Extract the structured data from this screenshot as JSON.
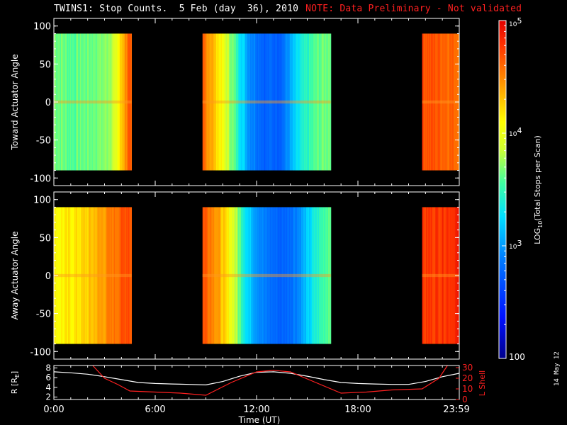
{
  "header": {
    "title": "TWINS1: Stop Counts.  5 Feb (day  36), 2010",
    "note": "NOTE: Data Preliminary - Not validated"
  },
  "side_label": "14 May 12",
  "colors": {
    "background": "#000000",
    "axes": "#ffffff",
    "note": "#ff2020",
    "lshell": "#ff2020",
    "radius": "#ffffff"
  },
  "chart_data": [
    {
      "type": "heatmap",
      "panel": "toward",
      "ylabel": "Toward Actuator Angle",
      "ylim": [
        -110,
        110
      ],
      "yticks": [
        -100,
        -50,
        0,
        50,
        100
      ],
      "xlim_hours": [
        0,
        24
      ],
      "scan_range_deg": [
        -90,
        90
      ],
      "data_blocks_hours": [
        [
          0.0,
          4.6
        ],
        [
          8.8,
          16.4
        ],
        [
          21.8,
          24.0
        ]
      ],
      "log10_profile": [
        {
          "t": 0.0,
          "v": 3.7
        },
        {
          "t": 1.0,
          "v": 3.6
        },
        {
          "t": 2.0,
          "v": 3.65
        },
        {
          "t": 3.0,
          "v": 3.7
        },
        {
          "t": 3.6,
          "v": 3.9
        },
        {
          "t": 4.0,
          "v": 4.3
        },
        {
          "t": 4.4,
          "v": 4.65
        },
        {
          "t": 4.6,
          "v": 4.5
        },
        {
          "t": 8.8,
          "v": 4.6
        },
        {
          "t": 9.5,
          "v": 4.3
        },
        {
          "t": 10.5,
          "v": 3.7
        },
        {
          "t": 11.5,
          "v": 3.0
        },
        {
          "t": 12.5,
          "v": 2.75
        },
        {
          "t": 13.5,
          "v": 2.8
        },
        {
          "t": 14.5,
          "v": 3.3
        },
        {
          "t": 15.5,
          "v": 3.6
        },
        {
          "t": 16.4,
          "v": 3.7
        },
        {
          "t": 21.8,
          "v": 4.7
        },
        {
          "t": 23.0,
          "v": 4.65
        },
        {
          "t": 24.0,
          "v": 4.6
        }
      ]
    },
    {
      "type": "heatmap",
      "panel": "away",
      "ylabel": "Away Actuator Angle",
      "ylim": [
        -110,
        110
      ],
      "yticks": [
        -100,
        -50,
        0,
        50,
        100
      ],
      "xlim_hours": [
        0,
        24
      ],
      "scan_range_deg": [
        -90,
        90
      ],
      "data_blocks_hours": [
        [
          0.0,
          4.6
        ],
        [
          8.8,
          16.4
        ],
        [
          21.8,
          24.0
        ]
      ],
      "log10_profile": [
        {
          "t": 0.0,
          "v": 4.1
        },
        {
          "t": 1.0,
          "v": 4.15
        },
        {
          "t": 2.0,
          "v": 4.25
        },
        {
          "t": 3.0,
          "v": 4.45
        },
        {
          "t": 3.8,
          "v": 4.6
        },
        {
          "t": 4.4,
          "v": 4.75
        },
        {
          "t": 4.6,
          "v": 4.6
        },
        {
          "t": 8.8,
          "v": 4.7
        },
        {
          "t": 9.5,
          "v": 4.5
        },
        {
          "t": 10.5,
          "v": 4.0
        },
        {
          "t": 11.5,
          "v": 3.2
        },
        {
          "t": 12.5,
          "v": 2.85
        },
        {
          "t": 13.5,
          "v": 2.75
        },
        {
          "t": 14.5,
          "v": 2.95
        },
        {
          "t": 15.5,
          "v": 3.4
        },
        {
          "t": 16.4,
          "v": 3.7
        },
        {
          "t": 21.8,
          "v": 4.75
        },
        {
          "t": 23.0,
          "v": 4.8
        },
        {
          "t": 24.0,
          "v": 4.85
        }
      ]
    },
    {
      "type": "line",
      "panel": "orbit",
      "xlabel": "Time (UT)",
      "xticks": [
        "0:00",
        "6:00",
        "12:00",
        "18:00",
        "23:59"
      ],
      "xtick_hours": [
        0,
        6,
        12,
        18,
        24
      ],
      "ylabel_left": "R [R",
      "ylabel_left_sub": "E",
      "ylabel_left_end": "]",
      "ylabel_right": "L Shell",
      "ylim_left": [
        1.5,
        8.5
      ],
      "yticks_left": [
        2,
        4,
        6,
        8
      ],
      "ylim_right": [
        0,
        32
      ],
      "yticks_right": [
        0,
        10,
        20,
        30
      ],
      "series": [
        {
          "axis": "left",
          "x": [
            0,
            1,
            2,
            3,
            4,
            5,
            6,
            7,
            8,
            9,
            10,
            11,
            12,
            13,
            14,
            15,
            16,
            17,
            18,
            19,
            20,
            21,
            22,
            23,
            24
          ],
          "y": [
            7.2,
            7.0,
            6.7,
            6.2,
            5.6,
            5.0,
            4.8,
            4.7,
            4.6,
            4.5,
            5.2,
            6.3,
            7.1,
            7.2,
            6.9,
            6.3,
            5.6,
            5.0,
            4.8,
            4.7,
            4.6,
            4.6,
            5.2,
            6.2,
            6.9
          ]
        },
        {
          "axis": "right",
          "x": [
            2.3,
            3.0,
            3.8,
            4.5,
            6.0,
            7.5,
            9.0,
            10.5,
            12.0,
            13.0,
            14.0,
            15.5,
            17.0,
            18.5,
            20.0,
            21.8,
            22.8,
            23.3
          ],
          "y": [
            32,
            20,
            14,
            8,
            7,
            6,
            4,
            16,
            26,
            27.5,
            26,
            16,
            6,
            7,
            9,
            10,
            20,
            32
          ]
        }
      ]
    },
    {
      "type": "colorbar",
      "label": "LOG",
      "label_sub": "10",
      "label_end": "(Total Stops per Scan)",
      "scale": "log",
      "range": [
        100,
        100000
      ],
      "ticks": [
        {
          "value": 100000,
          "base": "10",
          "exp": "5"
        },
        {
          "value": 10000,
          "base": "10",
          "exp": "4"
        },
        {
          "value": 1000,
          "base": "10",
          "exp": "3"
        },
        {
          "value": 100,
          "base": "100",
          "exp": ""
        }
      ]
    }
  ]
}
